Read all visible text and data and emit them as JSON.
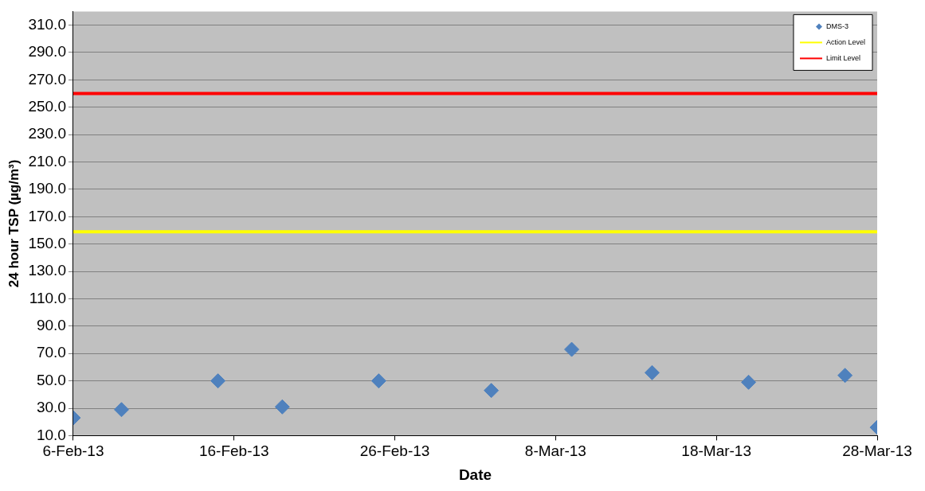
{
  "chart_data": {
    "type": "scatter",
    "xlabel": "Date",
    "ylabel": "24 hour TSP (µg/m³)",
    "x": [
      "--02-06",
      "--02-09",
      "--02-15",
      "--02-19",
      "--02-25",
      "--03-04",
      "--03-09",
      "--03-14",
      "--03-20",
      "--03-26",
      "--03-28"
    ],
    "series": [
      {
        "name": "DMS-3",
        "color": "#4f81bd",
        "values": [
          23,
          29,
          50,
          31,
          50,
          43,
          73,
          56,
          49,
          54,
          16
        ]
      }
    ],
    "marker": "diamond",
    "ref_lines": [
      {
        "axis": "y",
        "value": 159,
        "label": "Action Level",
        "color": "#ffff00"
      },
      {
        "axis": "y",
        "value": 260,
        "label": "Limit Level",
        "color": "#ff0000"
      }
    ],
    "xlim": [
      "--02-06",
      "--03-28"
    ],
    "xticks": [
      {
        "value": "--02-06",
        "label": "6-Feb-13"
      },
      {
        "value": "--02-16",
        "label": "16-Feb-13"
      },
      {
        "value": "--02-26",
        "label": "26-Feb-13"
      },
      {
        "value": "--03-08",
        "label": "8-Mar-13"
      },
      {
        "value": "--03-18",
        "label": "18-Mar-13"
      },
      {
        "value": "--03-28",
        "label": "28-Mar-13"
      }
    ],
    "ylim": [
      10,
      320
    ],
    "yticks": [
      {
        "value": 10,
        "label": "10.0"
      },
      {
        "value": 30,
        "label": "30.0"
      },
      {
        "value": 50,
        "label": "50.0"
      },
      {
        "value": 70,
        "label": "70.0"
      },
      {
        "value": 90,
        "label": "90.0"
      },
      {
        "value": 110,
        "label": "110.0"
      },
      {
        "value": 130,
        "label": "130.0"
      },
      {
        "value": 150,
        "label": "150.0"
      },
      {
        "value": 170,
        "label": "170.0"
      },
      {
        "value": 190,
        "label": "190.0"
      },
      {
        "value": 210,
        "label": "210.0"
      },
      {
        "value": 230,
        "label": "230.0"
      },
      {
        "value": 250,
        "label": "250.0"
      },
      {
        "value": 270,
        "label": "270.0"
      },
      {
        "value": 290,
        "label": "290.0"
      },
      {
        "value": 310,
        "label": "310.0"
      }
    ],
    "grid": "y",
    "legend": "top right"
  }
}
